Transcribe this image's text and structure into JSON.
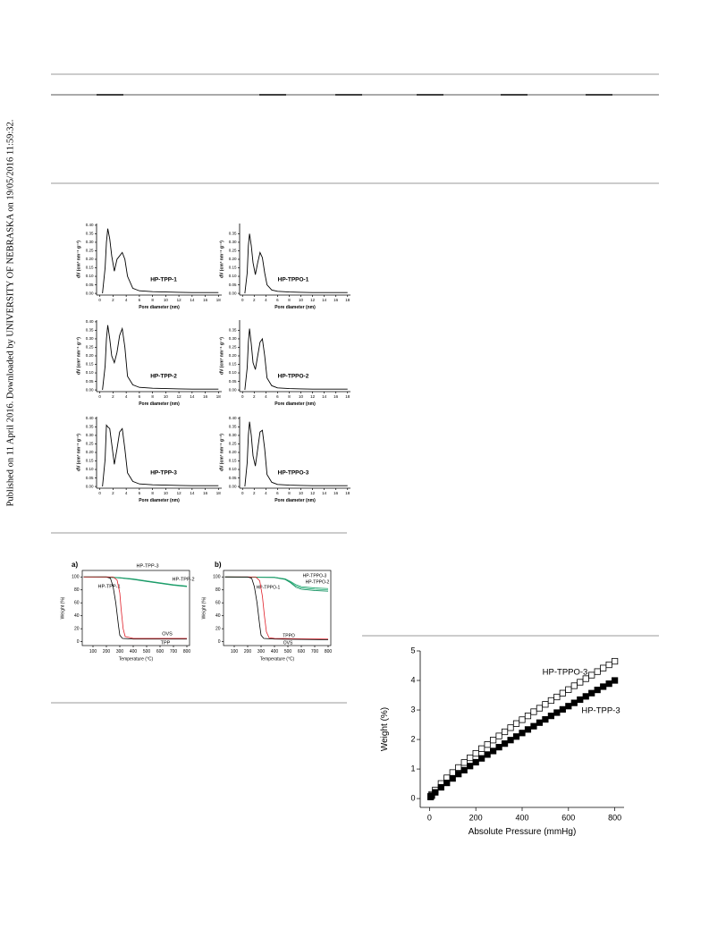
{
  "sidebar": "Published on 11 April 2016. Downloaded by UNIVERSITY OF NEBRASKA on 19/05/2016 11:59:32.",
  "chart_data": [
    {
      "type": "line",
      "xlabel": "Pore diameter (nm)",
      "ylabel": "dV (cm³ nm⁻¹ g⁻¹)",
      "xlim": [
        -0.5,
        18.5
      ],
      "ylim": [
        -0.01,
        0.41
      ],
      "xticks": [
        0,
        2,
        4,
        6,
        8,
        10,
        12,
        14,
        16,
        18
      ],
      "yticks": [
        {
          "value": 0,
          "label": "0.00"
        },
        {
          "value": 0.05,
          "label": "0.05"
        },
        {
          "value": 0.1,
          "label": "0.10"
        },
        {
          "value": 0.15,
          "label": "0.15"
        },
        {
          "value": 0.2,
          "label": "0.20"
        },
        {
          "value": 0.25,
          "label": "0.25"
        },
        {
          "value": 0.3,
          "label": "0.30"
        },
        {
          "value": 0.35,
          "label": "0.35"
        },
        {
          "value": 0.4,
          "label": "0.40"
        }
      ],
      "x": [
        0.4,
        0.8,
        1.0,
        1.2,
        1.5,
        1.8,
        2.2,
        2.6,
        3.0,
        3.4,
        3.8,
        4.2,
        5,
        6,
        8,
        10,
        12,
        14,
        16,
        18
      ],
      "series": [
        {
          "name": "HP-TPP-1",
          "color": "#000000",
          "values": [
            0,
            0.15,
            0.3,
            0.38,
            0.32,
            0.22,
            0.13,
            0.2,
            0.22,
            0.24,
            0.2,
            0.1,
            0.03,
            0.015,
            0.01,
            0.008,
            0.006,
            0.005,
            0.005,
            0.005
          ]
        }
      ]
    },
    {
      "type": "line",
      "xlabel": "Pore diameter (nm)",
      "ylabel": "dV (cm³ nm⁻¹ g⁻¹)",
      "xlim": [
        -0.5,
        18.5
      ],
      "ylim": [
        -0.01,
        0.41
      ],
      "xticks": [
        0,
        2,
        4,
        6,
        8,
        10,
        12,
        14,
        16,
        18
      ],
      "yticks": [
        {
          "value": 0,
          "label": "0.00"
        },
        {
          "value": 0.05,
          "label": "0.05"
        },
        {
          "value": 0.1,
          "label": "0.10"
        },
        {
          "value": 0.15,
          "label": "0.15"
        },
        {
          "value": 0.2,
          "label": "0.20"
        },
        {
          "value": 0.25,
          "label": "0.25"
        },
        {
          "value": 0.3,
          "label": "0.30"
        },
        {
          "value": 0.35,
          "label": "0.35"
        }
      ],
      "x": [
        0.4,
        0.8,
        1.0,
        1.2,
        1.5,
        1.8,
        2.2,
        2.6,
        3.0,
        3.4,
        3.8,
        4.2,
        5,
        6,
        8,
        10,
        12,
        14,
        16,
        18
      ],
      "series": [
        {
          "name": "HP-TPPO-1",
          "color": "#000000",
          "values": [
            0,
            0.12,
            0.28,
            0.35,
            0.28,
            0.18,
            0.11,
            0.18,
            0.24,
            0.21,
            0.12,
            0.05,
            0.02,
            0.012,
            0.008,
            0.006,
            0.005,
            0.005,
            0.005,
            0.005
          ]
        }
      ]
    },
    {
      "type": "line",
      "xlabel": "Pore diameter (nm)",
      "ylabel": "dV (cm³ nm⁻¹ g⁻¹)",
      "xlim": [
        -0.5,
        18.5
      ],
      "ylim": [
        -0.01,
        0.41
      ],
      "xticks": [
        0,
        2,
        4,
        6,
        8,
        10,
        12,
        14,
        16,
        18
      ],
      "yticks": [
        {
          "value": 0,
          "label": "0.00"
        },
        {
          "value": 0.05,
          "label": "0.05"
        },
        {
          "value": 0.1,
          "label": "0.10"
        },
        {
          "value": 0.15,
          "label": "0.15"
        },
        {
          "value": 0.2,
          "label": "0.20"
        },
        {
          "value": 0.25,
          "label": "0.25"
        },
        {
          "value": 0.3,
          "label": "0.30"
        },
        {
          "value": 0.35,
          "label": "0.35"
        },
        {
          "value": 0.4,
          "label": "0.40"
        }
      ],
      "x": [
        0.4,
        0.8,
        1.0,
        1.2,
        1.5,
        1.8,
        2.2,
        2.6,
        3.0,
        3.4,
        3.8,
        4.2,
        5,
        6,
        8,
        10,
        12,
        14,
        16,
        18
      ],
      "series": [
        {
          "name": "HP-TPP-2",
          "color": "#000000",
          "values": [
            0,
            0.14,
            0.3,
            0.38,
            0.3,
            0.2,
            0.16,
            0.22,
            0.32,
            0.36,
            0.25,
            0.08,
            0.03,
            0.015,
            0.01,
            0.008,
            0.006,
            0.005,
            0.005,
            0.005
          ]
        }
      ]
    },
    {
      "type": "line",
      "xlabel": "Pore diameter (nm)",
      "ylabel": "dV (cm³ nm⁻¹ g⁻¹)",
      "xlim": [
        -0.5,
        18.5
      ],
      "ylim": [
        -0.01,
        0.41
      ],
      "xticks": [
        0,
        2,
        4,
        6,
        8,
        10,
        12,
        14,
        16,
        18
      ],
      "yticks": [
        {
          "value": 0,
          "label": "0.00"
        },
        {
          "value": 0.05,
          "label": "0.05"
        },
        {
          "value": 0.1,
          "label": "0.10"
        },
        {
          "value": 0.15,
          "label": "0.15"
        },
        {
          "value": 0.2,
          "label": "0.20"
        },
        {
          "value": 0.25,
          "label": "0.25"
        },
        {
          "value": 0.3,
          "label": "0.30"
        },
        {
          "value": 0.35,
          "label": "0.35"
        }
      ],
      "x": [
        0.4,
        0.8,
        1.0,
        1.2,
        1.5,
        1.8,
        2.2,
        2.6,
        3.0,
        3.4,
        3.8,
        4.2,
        5,
        6,
        8,
        10,
        12,
        14,
        16,
        18
      ],
      "series": [
        {
          "name": "HP-TPPO-2",
          "color": "#000000",
          "values": [
            0,
            0.13,
            0.28,
            0.36,
            0.27,
            0.16,
            0.12,
            0.2,
            0.28,
            0.3,
            0.2,
            0.07,
            0.025,
            0.012,
            0.008,
            0.006,
            0.005,
            0.005,
            0.005,
            0.005
          ]
        }
      ]
    },
    {
      "type": "line",
      "xlabel": "Pore diameter (nm)",
      "ylabel": "dV (cm³ nm⁻¹ g⁻¹)",
      "xlim": [
        -0.5,
        18.5
      ],
      "ylim": [
        -0.01,
        0.41
      ],
      "xticks": [
        0,
        2,
        4,
        6,
        8,
        10,
        12,
        14,
        16,
        18
      ],
      "yticks": [
        {
          "value": 0,
          "label": "0.00"
        },
        {
          "value": 0.05,
          "label": "0.05"
        },
        {
          "value": 0.1,
          "label": "0.10"
        },
        {
          "value": 0.15,
          "label": "0.15"
        },
        {
          "value": 0.2,
          "label": "0.20"
        },
        {
          "value": 0.25,
          "label": "0.25"
        },
        {
          "value": 0.3,
          "label": "0.30"
        },
        {
          "value": 0.35,
          "label": "0.35"
        },
        {
          "value": 0.4,
          "label": "0.40"
        }
      ],
      "x": [
        0.4,
        0.8,
        1.0,
        1.2,
        1.5,
        1.8,
        2.2,
        2.6,
        3.0,
        3.4,
        3.8,
        4.2,
        5,
        6,
        8,
        10,
        12,
        14,
        16,
        18
      ],
      "series": [
        {
          "name": "HP-TPP-3",
          "color": "#000000",
          "values": [
            0,
            0.16,
            0.36,
            0.35,
            0.34,
            0.25,
            0.13,
            0.22,
            0.32,
            0.34,
            0.22,
            0.08,
            0.03,
            0.015,
            0.01,
            0.008,
            0.006,
            0.005,
            0.005,
            0.005
          ]
        }
      ]
    },
    {
      "type": "line",
      "xlabel": "Pore diameter (nm)",
      "ylabel": "dV (cm³ nm⁻¹ g⁻¹)",
      "xlim": [
        -0.5,
        18.5
      ],
      "ylim": [
        -0.01,
        0.41
      ],
      "xticks": [
        0,
        2,
        4,
        6,
        8,
        10,
        12,
        14,
        16,
        18
      ],
      "yticks": [
        {
          "value": 0,
          "label": "0.00"
        },
        {
          "value": 0.05,
          "label": "0.05"
        },
        {
          "value": 0.1,
          "label": "0.10"
        },
        {
          "value": 0.15,
          "label": "0.15"
        },
        {
          "value": 0.2,
          "label": "0.20"
        },
        {
          "value": 0.25,
          "label": "0.25"
        },
        {
          "value": 0.3,
          "label": "0.30"
        },
        {
          "value": 0.35,
          "label": "0.35"
        },
        {
          "value": 0.4,
          "label": "0.40"
        }
      ],
      "x": [
        0.4,
        0.8,
        1.0,
        1.2,
        1.5,
        1.8,
        2.2,
        2.6,
        3.0,
        3.4,
        3.8,
        4.2,
        5,
        6,
        8,
        10,
        12,
        14,
        16,
        18
      ],
      "series": [
        {
          "name": "HP-TPPO-3",
          "color": "#000000",
          "values": [
            0,
            0.14,
            0.3,
            0.38,
            0.3,
            0.18,
            0.12,
            0.22,
            0.32,
            0.33,
            0.22,
            0.07,
            0.025,
            0.012,
            0.008,
            0.006,
            0.005,
            0.005,
            0.005,
            0.005
          ]
        }
      ]
    },
    {
      "type": "line",
      "panel_label": "a)",
      "xlabel": "Temperature (°C)",
      "ylabel": "Weight (%)",
      "xlim": [
        20,
        820
      ],
      "ylim": [
        -6,
        110
      ],
      "xticks": [
        100,
        200,
        300,
        400,
        500,
        600,
        700,
        800
      ],
      "yticks": [
        0,
        20,
        40,
        60,
        80,
        100
      ],
      "series": [
        {
          "name": "HP-TPP-3",
          "color": "#1aa36a",
          "x": [
            30,
            200,
            300,
            400,
            500,
            600,
            700,
            800
          ],
          "values": [
            100,
            100,
            99,
            97,
            94,
            91,
            88,
            86
          ]
        },
        {
          "name": "HP-TPP-1",
          "color": "#2bb07a",
          "x": [
            30,
            200,
            300,
            400,
            500,
            600,
            700,
            800
          ],
          "values": [
            100,
            100,
            98.5,
            96.5,
            93.5,
            90.5,
            87.5,
            85.5
          ]
        },
        {
          "name": "HP-TPP-2",
          "color": "#139060",
          "x": [
            30,
            200,
            300,
            400,
            500,
            600,
            700,
            800
          ],
          "values": [
            100,
            99.5,
            98.5,
            96,
            93,
            90,
            87,
            85
          ]
        },
        {
          "name": "OVS",
          "color": "#000000",
          "x": [
            30,
            200,
            230,
            250,
            270,
            290,
            300,
            320,
            400,
            800
          ],
          "values": [
            100,
            100,
            98,
            85,
            60,
            25,
            10,
            5,
            4,
            4
          ]
        },
        {
          "name": "TPP",
          "color": "#e0202a",
          "x": [
            30,
            250,
            280,
            300,
            310,
            325,
            340,
            400,
            800
          ],
          "values": [
            100,
            100,
            95,
            75,
            50,
            20,
            8,
            5,
            5
          ]
        }
      ]
    },
    {
      "type": "line",
      "panel_label": "b)",
      "xlabel": "Temperature (°C)",
      "ylabel": "Weight (%)",
      "xlim": [
        20,
        820
      ],
      "ylim": [
        -6,
        110
      ],
      "xticks": [
        100,
        200,
        300,
        400,
        500,
        600,
        700,
        800
      ],
      "yticks": [
        0,
        20,
        40,
        60,
        80,
        100
      ],
      "series": [
        {
          "name": "HP-TPPO-3",
          "color": "#1aa36a",
          "x": [
            30,
            400,
            480,
            520,
            560,
            600,
            700,
            800
          ],
          "values": [
            100,
            99.5,
            97,
            93,
            88,
            85,
            83,
            82
          ]
        },
        {
          "name": "HP-TPPO-2",
          "color": "#2bb07a",
          "x": [
            30,
            400,
            480,
            520,
            560,
            600,
            700,
            800
          ],
          "values": [
            100,
            99.5,
            96.5,
            92,
            86,
            83,
            81,
            80
          ]
        },
        {
          "name": "HP-TPPO-1",
          "color": "#139060",
          "x": [
            30,
            400,
            480,
            520,
            560,
            600,
            700,
            800
          ],
          "values": [
            100,
            99,
            96,
            91,
            84,
            81,
            79,
            78
          ]
        },
        {
          "name": "TPPO",
          "color": "#e0202a",
          "x": [
            30,
            260,
            290,
            310,
            325,
            340,
            360,
            400,
            800
          ],
          "values": [
            100,
            100,
            94,
            70,
            40,
            15,
            6,
            5,
            4
          ]
        },
        {
          "name": "OVS",
          "color": "#000000",
          "x": [
            30,
            200,
            230,
            250,
            270,
            290,
            300,
            320,
            400,
            800
          ],
          "values": [
            100,
            100,
            98,
            85,
            60,
            25,
            10,
            5,
            4,
            3
          ]
        }
      ]
    },
    {
      "type": "scatter",
      "xlabel": "Absolute Pressure (mmHg)",
      "ylabel": "Weight (%)",
      "xlim": [
        -40,
        840
      ],
      "ylim": [
        -0.3,
        5.0
      ],
      "xticks": [
        0,
        200,
        400,
        600,
        800
      ],
      "yticks": [
        0,
        1,
        2,
        3,
        4,
        5
      ],
      "x": [
        5,
        10,
        25,
        50,
        75,
        100,
        125,
        150,
        175,
        200,
        225,
        250,
        275,
        300,
        325,
        350,
        375,
        400,
        425,
        450,
        475,
        500,
        525,
        550,
        575,
        600,
        625,
        650,
        675,
        700,
        725,
        750,
        775,
        800
      ],
      "series": [
        {
          "name": "HP-TPPO-3",
          "color": "#000000",
          "filled": false,
          "values": [
            0.08,
            0.14,
            0.29,
            0.51,
            0.7,
            0.88,
            1.05,
            1.22,
            1.38,
            1.53,
            1.69,
            1.83,
            1.98,
            2.12,
            2.26,
            2.4,
            2.54,
            2.67,
            2.8,
            2.94,
            3.06,
            3.19,
            3.32,
            3.44,
            3.57,
            3.69,
            3.82,
            3.94,
            4.06,
            4.18,
            4.3,
            4.42,
            4.53,
            4.65
          ]
        },
        {
          "name": "HP-TPP-3",
          "color": "#000000",
          "filled": true,
          "values": [
            0.05,
            0.1,
            0.21,
            0.38,
            0.53,
            0.68,
            0.83,
            0.96,
            1.1,
            1.23,
            1.36,
            1.49,
            1.61,
            1.74,
            1.86,
            1.98,
            2.1,
            2.22,
            2.34,
            2.45,
            2.57,
            2.68,
            2.8,
            2.91,
            3.02,
            3.13,
            3.24,
            3.35,
            3.46,
            3.57,
            3.68,
            3.79,
            3.89,
            4.0
          ]
        }
      ]
    }
  ]
}
